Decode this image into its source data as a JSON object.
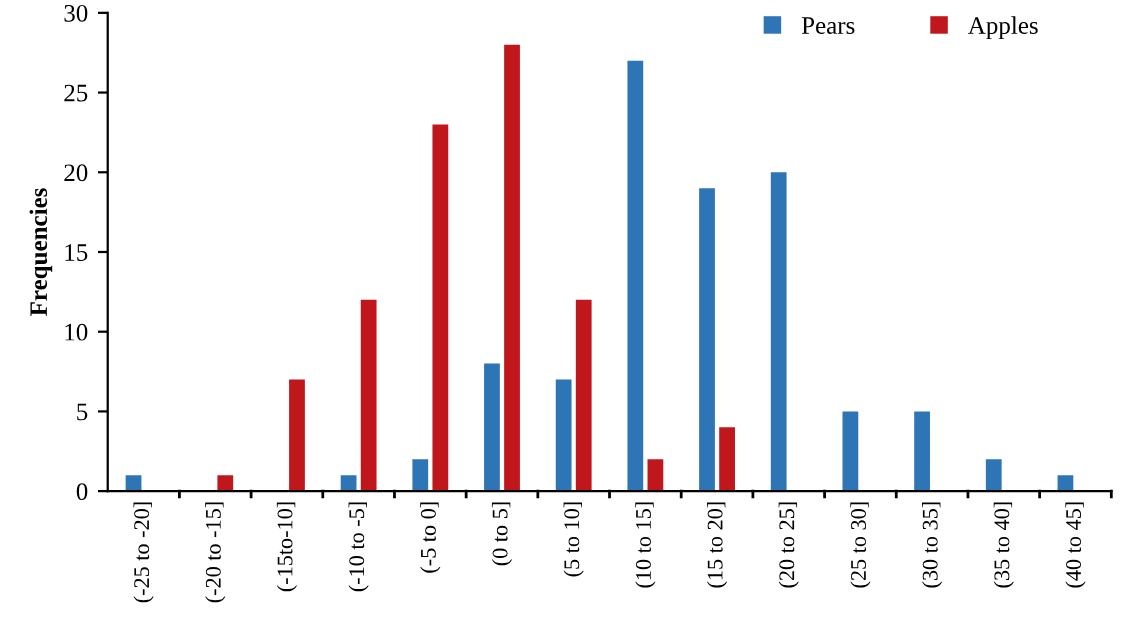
{
  "chart_data": {
    "type": "bar",
    "ylabel": "Frequencies",
    "categories": [
      "(-25 to -20]",
      "(-20 to -15]",
      "(-15to-10]",
      "(-10 to -5]",
      "(-5 to 0]",
      "(0 to 5]",
      "(5 to 10]",
      "(10 to 15]",
      "(15 to 20]",
      "(20 to 25]",
      "(25 to 30]",
      "(30 to 35]",
      "(35 to 40]",
      "(40 to 45]"
    ],
    "series": [
      {
        "name": "Pears",
        "color": "#2e75b6",
        "values": [
          1,
          0,
          0,
          1,
          2,
          8,
          7,
          27,
          19,
          20,
          5,
          5,
          2,
          1
        ]
      },
      {
        "name": "Apples",
        "color": "#c0171c",
        "values": [
          0,
          1,
          7,
          12,
          23,
          28,
          12,
          2,
          4,
          0,
          0,
          0,
          0,
          0
        ]
      }
    ],
    "ylim": [
      0,
      30
    ],
    "yticks": [
      0,
      5,
      10,
      15,
      20,
      25,
      30
    ],
    "grid": false,
    "legend": "top right"
  }
}
